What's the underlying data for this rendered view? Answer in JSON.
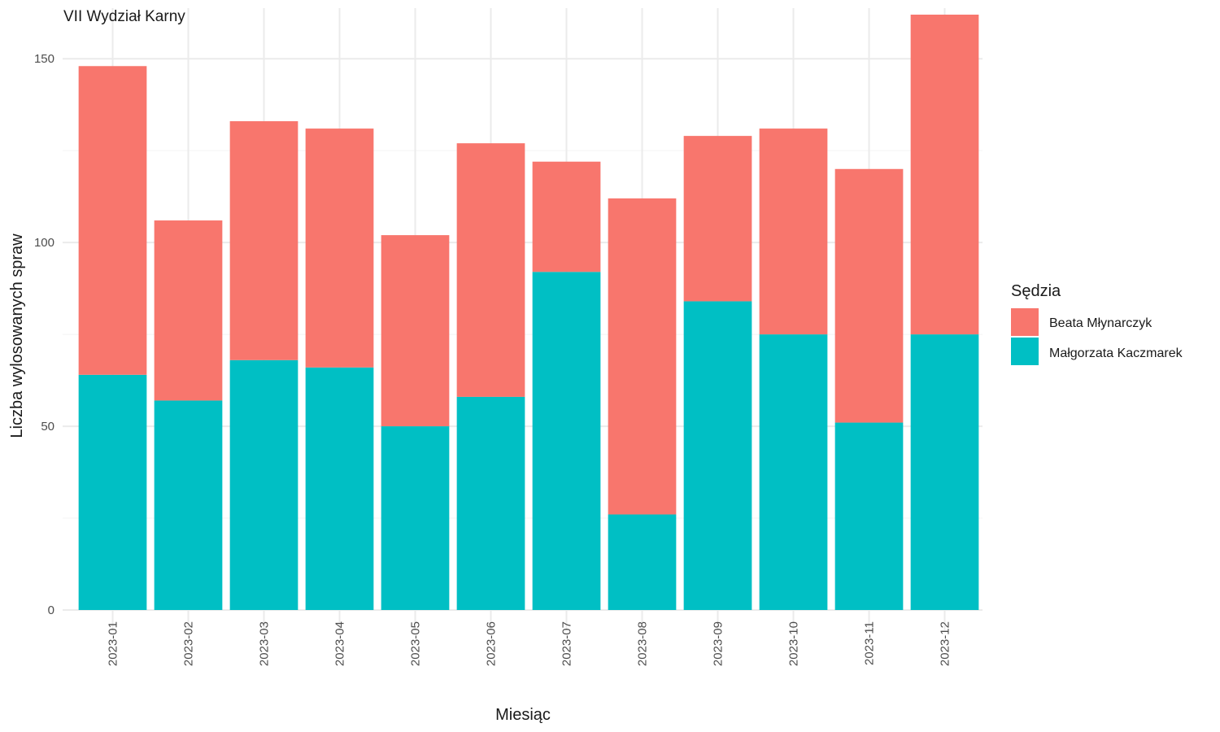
{
  "chart_data": {
    "type": "bar",
    "stacked": true,
    "title": "VII Wydział Karny",
    "xlabel": "Miesiąc",
    "ylabel": "Liczba wylosowanych spraw",
    "categories": [
      "2023-01",
      "2023-02",
      "2023-03",
      "2023-04",
      "2023-05",
      "2023-06",
      "2023-07",
      "2023-08",
      "2023-09",
      "2023-10",
      "2023-11",
      "2023-12"
    ],
    "series": [
      {
        "name": "Małgorzata Kaczmarek",
        "color": "#00BFC4",
        "values": [
          64,
          57,
          68,
          66,
          50,
          58,
          92,
          26,
          84,
          75,
          51,
          75
        ]
      },
      {
        "name": "Beata Młynarczyk",
        "color": "#F8766D",
        "values": [
          84,
          49,
          65,
          65,
          52,
          69,
          30,
          86,
          45,
          56,
          69,
          87
        ]
      }
    ],
    "ylim": [
      0,
      162
    ],
    "yticks": [
      0,
      50,
      100,
      150
    ],
    "grid": true,
    "legend": {
      "title": "Sędzia",
      "position": "right",
      "entries": [
        "Beata Młynarczyk",
        "Małgorzata Kaczmarek"
      ]
    }
  }
}
